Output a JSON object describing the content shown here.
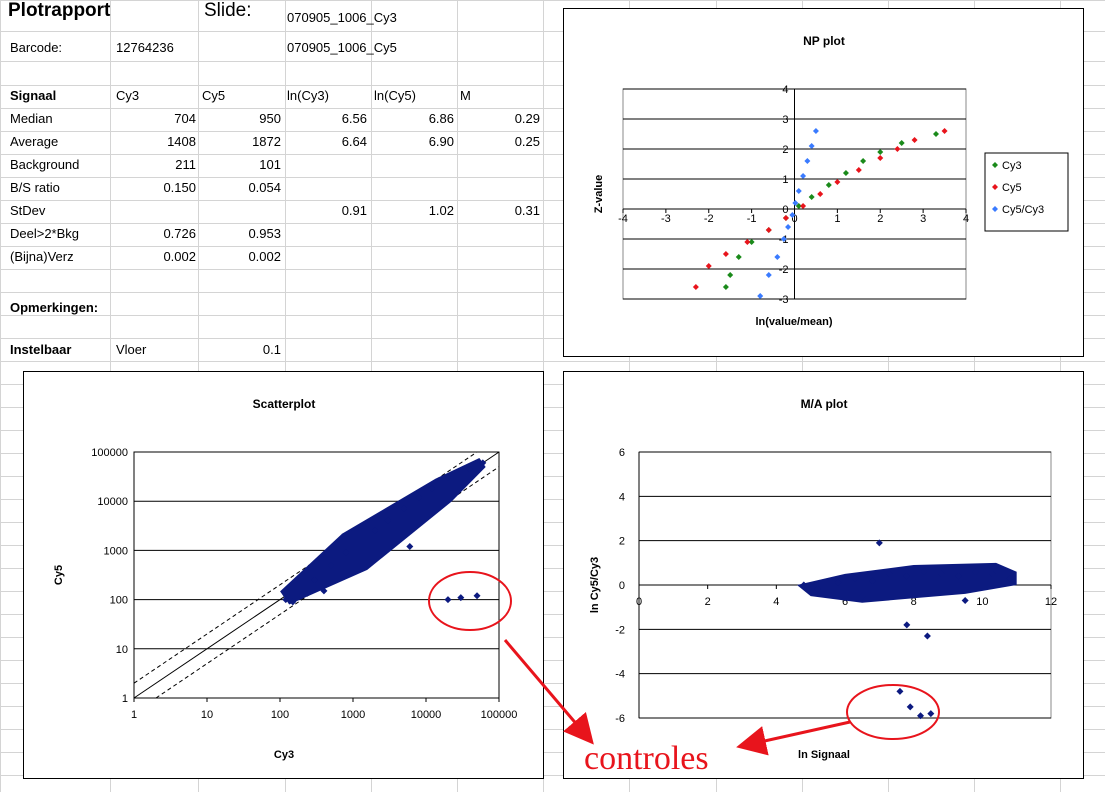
{
  "sheet": {
    "title": "Plotrapport",
    "slide_label": "Slide:",
    "slide_cy3": "070905_1006_Cy3",
    "barcode_label": "Barcode:",
    "barcode_value": "12764236",
    "slide_cy5": "070905_1006_Cy5",
    "headers": [
      "Signaal",
      "Cy3",
      "Cy5",
      "ln(Cy3)",
      "ln(Cy5)",
      "M"
    ],
    "rows": [
      {
        "label": "Median",
        "cy3": "704",
        "cy5": "950",
        "lncy3": "6.56",
        "lncy5": "6.86",
        "m": "0.29"
      },
      {
        "label": "Average",
        "cy3": "1408",
        "cy5": "1872",
        "lncy3": "6.64",
        "lncy5": "6.90",
        "m": "0.25"
      },
      {
        "label": "Background",
        "cy3": "211",
        "cy5": "101",
        "lncy3": "",
        "lncy5": "",
        "m": ""
      },
      {
        "label": "B/S ratio",
        "cy3": "0.150",
        "cy5": "0.054",
        "lncy3": "",
        "lncy5": "",
        "m": ""
      },
      {
        "label": "StDev",
        "cy3": "",
        "cy5": "",
        "lncy3": "0.91",
        "lncy5": "1.02",
        "m": "0.31"
      },
      {
        "label": "Deel>2*Bkg",
        "cy3": "0.726",
        "cy5": "0.953",
        "lncy3": "",
        "lncy5": "",
        "m": ""
      },
      {
        "label": "(Bijna)Verz",
        "cy3": "0.002",
        "cy5": "0.002",
        "lncy3": "",
        "lncy5": "",
        "m": ""
      }
    ],
    "opmerkingen": "Opmerkingen:",
    "instelbaar": "Instelbaar",
    "vloer_label": "Vloer",
    "vloer_value": "0.1"
  },
  "annotation": {
    "text": "controles",
    "color": "#e8141c"
  },
  "colors": {
    "cy3": "#1a8a1a",
    "cy5": "#e8141c",
    "ratio": "#3a7bff",
    "scatter": "#0c1a80",
    "grid": "#c8c8c8"
  },
  "chart_data": [
    {
      "type": "line",
      "title": "NP plot",
      "xlabel": "ln(value/mean)",
      "ylabel": "Z-value",
      "xlim": [
        -4,
        4
      ],
      "ylim": [
        -3,
        4
      ],
      "xticks": [
        "-4",
        "-3",
        "-2",
        "-1",
        "0",
        "1",
        "2",
        "3",
        "4"
      ],
      "yticks": [
        "-3",
        "-2",
        "-1",
        "0",
        "1",
        "2",
        "3",
        "4"
      ],
      "legend_position": "right",
      "series": [
        {
          "name": "Cy3",
          "color": "#1a8a1a",
          "x": [
            -1.6,
            -1.5,
            -1.3,
            -1.0,
            -0.6,
            -0.2,
            0.1,
            0.4,
            0.8,
            1.2,
            1.6,
            2.0,
            2.5,
            3.3
          ],
          "y": [
            -2.6,
            -2.2,
            -1.6,
            -1.1,
            -0.7,
            -0.3,
            0.1,
            0.4,
            0.8,
            1.2,
            1.6,
            1.9,
            2.2,
            2.5
          ]
        },
        {
          "name": "Cy5",
          "color": "#e8141c",
          "x": [
            -2.3,
            -2.0,
            -1.6,
            -1.1,
            -0.6,
            -0.2,
            0.2,
            0.6,
            1.0,
            1.5,
            2.0,
            2.4,
            2.8,
            3.5
          ],
          "y": [
            -2.6,
            -1.9,
            -1.5,
            -1.1,
            -0.7,
            -0.3,
            0.1,
            0.5,
            0.9,
            1.3,
            1.7,
            2.0,
            2.3,
            2.6
          ]
        },
        {
          "name": "Cy5/Cy3",
          "color": "#3a7bff",
          "x": [
            -0.8,
            -0.6,
            -0.4,
            -0.25,
            -0.15,
            -0.05,
            0.02,
            0.1,
            0.2,
            0.3,
            0.4,
            0.5
          ],
          "y": [
            -2.9,
            -2.2,
            -1.6,
            -1.0,
            -0.6,
            -0.2,
            0.2,
            0.6,
            1.1,
            1.6,
            2.1,
            2.6
          ]
        }
      ]
    },
    {
      "type": "scatter",
      "title": "Scatterplot",
      "xlabel": "Cy3",
      "ylabel": "Cy5",
      "xscale": "log",
      "yscale": "log",
      "xlim": [
        1,
        100000
      ],
      "ylim": [
        1,
        100000
      ],
      "xticks": [
        "1",
        "10",
        "100",
        "1000",
        "10000",
        "100000"
      ],
      "yticks": [
        "1",
        "10",
        "100",
        "1000",
        "10000",
        "100000"
      ],
      "series": [
        {
          "name": "",
          "color": "#0c1a80",
          "x": [
            120,
            150,
            200,
            300,
            500,
            800,
            1200,
            2000,
            3000,
            5000,
            8000,
            12000,
            20000,
            40000,
            60000,
            20000,
            30000,
            50000,
            400,
            6000
          ],
          "y": [
            100,
            90,
            120,
            250,
            500,
            900,
            1500,
            2500,
            4000,
            7000,
            12000,
            18000,
            30000,
            45000,
            60000,
            100,
            110,
            120,
            150,
            1200
          ]
        }
      ]
    },
    {
      "type": "scatter",
      "title": "M/A plot",
      "xlabel": "ln Signaal",
      "ylabel": "ln Cy5/Cy3",
      "xlim": [
        0,
        12
      ],
      "ylim": [
        -6,
        6
      ],
      "xticks": [
        "0",
        "2",
        "4",
        "6",
        "8",
        "10",
        "12"
      ],
      "yticks": [
        "-6",
        "-4",
        "-2",
        "0",
        "2",
        "4",
        "6"
      ],
      "series": [
        {
          "name": "",
          "color": "#0c1a80",
          "x": [
            4.8,
            5.2,
            5.8,
            6.3,
            6.8,
            7.3,
            7.8,
            8.3,
            8.8,
            9.3,
            9.8,
            10.3,
            10.8,
            7.0,
            7.8,
            6.5,
            9.5,
            8.4,
            7.6,
            7.9,
            8.2,
            8.5
          ],
          "y": [
            0.0,
            -0.2,
            0.1,
            0.3,
            0.2,
            0.5,
            0.4,
            0.6,
            0.5,
            0.4,
            0.6,
            0.5,
            0.3,
            1.9,
            -1.8,
            -0.5,
            -0.7,
            -2.3,
            -4.8,
            -5.5,
            -5.9,
            -5.8
          ]
        }
      ]
    }
  ]
}
